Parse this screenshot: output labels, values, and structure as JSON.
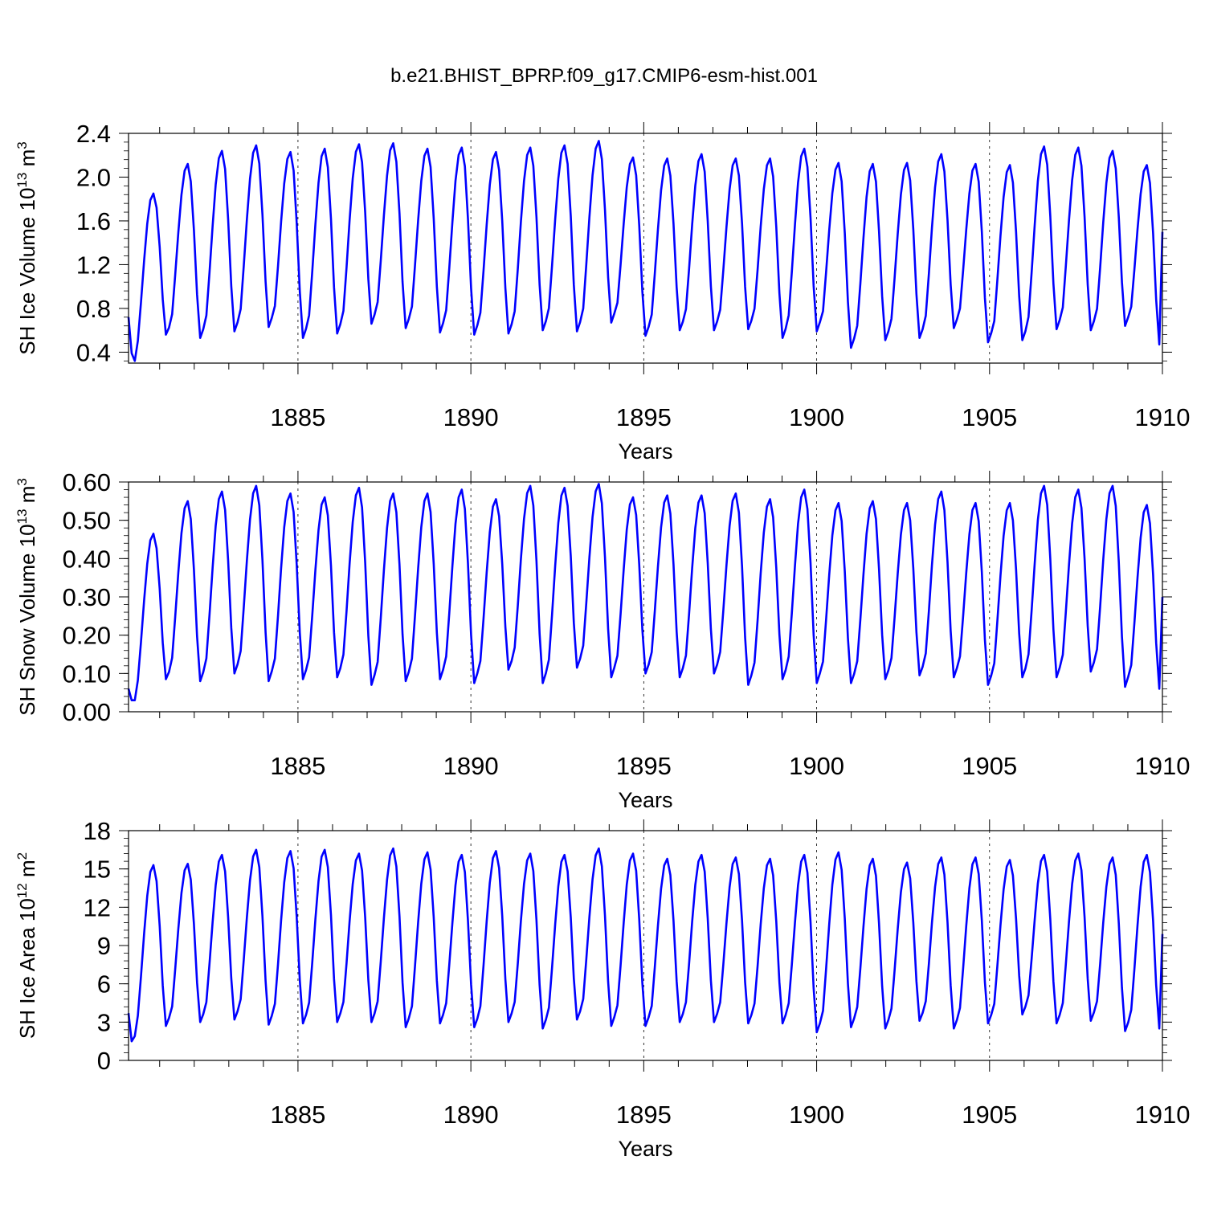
{
  "chart_data": [
    {
      "type": "line",
      "title": "b.e21.BHIST_BPRP.f09_g17.CMIP6-esm-hist.001",
      "xlabel": "Years",
      "ylabel": {
        "base": "SH Ice Volume 10",
        "exp": "13",
        "unit": " m",
        "unit_exp": "3"
      },
      "ylim": [
        0.3,
        2.4
      ],
      "yticks": [
        "0.4",
        "0.8",
        "1.2",
        "1.6",
        "2.0",
        "2.4"
      ],
      "ytick_values": [
        0.4,
        0.8,
        1.2,
        1.6,
        2.0,
        2.4
      ],
      "xlim": [
        1880.1,
        1910
      ],
      "xticks": [
        "1885",
        "1890",
        "1895",
        "1900",
        "1905",
        "1910"
      ],
      "xtick_values": [
        1885,
        1890,
        1895,
        1900,
        1905,
        1910
      ],
      "color": "#0000ff",
      "series": [
        {
          "name": "SH Ice Volume",
          "start": [
            0.72,
            0.39,
            0.32
          ],
          "peaks": [
            1.85,
            2.12,
            2.24,
            2.29,
            2.23,
            2.26,
            2.3,
            2.31,
            2.26,
            2.27,
            2.23,
            2.27,
            2.29,
            2.33,
            2.18,
            2.17,
            2.21,
            2.17,
            2.17,
            2.26,
            2.13,
            2.12,
            2.13,
            2.21,
            2.12,
            2.11,
            2.28,
            2.27,
            2.24,
            2.11
          ],
          "troughs": [
            0.56,
            0.53,
            0.59,
            0.63,
            0.53,
            0.57,
            0.66,
            0.62,
            0.58,
            0.56,
            0.57,
            0.6,
            0.59,
            0.67,
            0.55,
            0.6,
            0.6,
            0.61,
            0.53,
            0.59,
            0.44,
            0.51,
            0.53,
            0.62,
            0.49,
            0.51,
            0.61,
            0.6,
            0.64,
            0.47
          ],
          "end": 1.5
        }
      ]
    },
    {
      "type": "line",
      "xlabel": "Years",
      "ylabel": {
        "base": "SH Snow Volume 10",
        "exp": "13",
        "unit": " m",
        "unit_exp": "3"
      },
      "ylim": [
        0.0,
        0.6
      ],
      "yticks": [
        "0.00",
        "0.10",
        "0.20",
        "0.30",
        "0.40",
        "0.50",
        "0.60"
      ],
      "ytick_values": [
        0.0,
        0.1,
        0.2,
        0.3,
        0.4,
        0.5,
        0.6
      ],
      "xlim": [
        1880.1,
        1910
      ],
      "xticks": [
        "1885",
        "1890",
        "1895",
        "1900",
        "1905",
        "1910"
      ],
      "xtick_values": [
        1885,
        1890,
        1895,
        1900,
        1905,
        1910
      ],
      "color": "#0000ff",
      "series": [
        {
          "name": "SH Snow Volume",
          "start": [
            0.06,
            0.03,
            0.03
          ],
          "peaks": [
            0.465,
            0.55,
            0.575,
            0.59,
            0.57,
            0.56,
            0.585,
            0.57,
            0.57,
            0.58,
            0.555,
            0.59,
            0.585,
            0.595,
            0.56,
            0.565,
            0.565,
            0.57,
            0.555,
            0.58,
            0.545,
            0.55,
            0.545,
            0.575,
            0.545,
            0.545,
            0.59,
            0.58,
            0.59,
            0.54
          ],
          "troughs": [
            0.085,
            0.08,
            0.1,
            0.08,
            0.085,
            0.09,
            0.07,
            0.08,
            0.085,
            0.075,
            0.11,
            0.075,
            0.115,
            0.09,
            0.1,
            0.09,
            0.1,
            0.07,
            0.085,
            0.075,
            0.075,
            0.085,
            0.095,
            0.09,
            0.07,
            0.09,
            0.09,
            0.105,
            0.065,
            0.06
          ],
          "end": 0.3
        }
      ]
    },
    {
      "type": "line",
      "xlabel": "Years",
      "ylabel": {
        "base": "SH Ice Area 10",
        "exp": "12",
        "unit": " m",
        "unit_exp": "2"
      },
      "ylim": [
        0,
        18
      ],
      "yticks": [
        "0",
        "3",
        "6",
        "9",
        "12",
        "15",
        "18"
      ],
      "ytick_values": [
        0,
        3,
        6,
        9,
        12,
        15,
        18
      ],
      "xlim": [
        1880.1,
        1910
      ],
      "xticks": [
        "1885",
        "1890",
        "1895",
        "1900",
        "1905",
        "1910"
      ],
      "xtick_values": [
        1885,
        1890,
        1895,
        1900,
        1905,
        1910
      ],
      "color": "#0000ff",
      "series": [
        {
          "name": "SH Ice Area",
          "start": [
            3.7,
            1.5,
            1.9
          ],
          "peaks": [
            15.3,
            15.4,
            16.1,
            16.5,
            16.4,
            16.5,
            16.2,
            16.6,
            16.3,
            16.1,
            16.4,
            16.2,
            16.1,
            16.6,
            16.2,
            15.8,
            16.1,
            15.9,
            15.8,
            16.1,
            16.3,
            15.8,
            15.5,
            15.9,
            15.9,
            15.7,
            16.1,
            16.2,
            15.9,
            16.1
          ],
          "troughs": [
            2.7,
            3.0,
            3.2,
            2.8,
            2.9,
            3.0,
            3.0,
            2.6,
            2.9,
            2.6,
            3.0,
            2.5,
            3.2,
            2.7,
            2.7,
            3.0,
            3.0,
            2.9,
            2.9,
            2.2,
            2.6,
            2.5,
            3.1,
            2.5,
            2.9,
            3.6,
            2.9,
            3.1,
            2.3,
            2.5
          ],
          "end": 9.9
        }
      ]
    }
  ]
}
